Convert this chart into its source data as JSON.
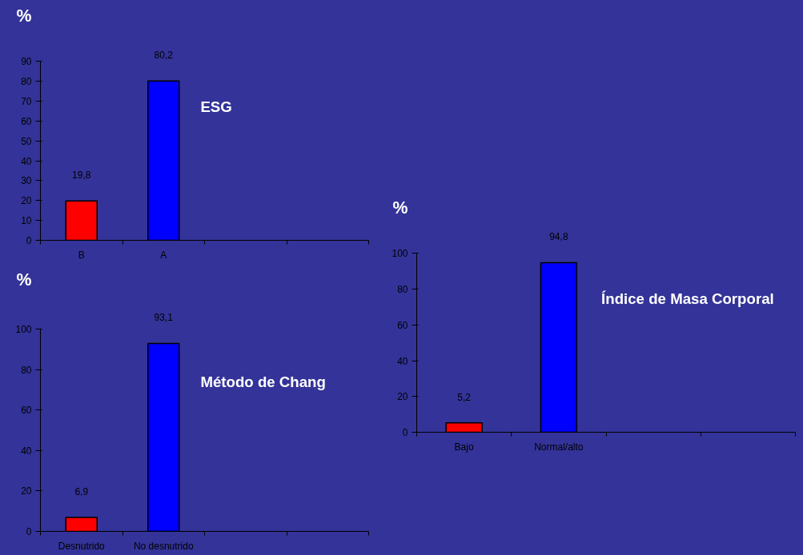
{
  "chart_data": [
    {
      "type": "bar",
      "title": "ESG",
      "ylabel": "%",
      "categories": [
        "B",
        "A",
        null,
        null
      ],
      "values": [
        19.8,
        80.2,
        null,
        null
      ],
      "colors": [
        "#ff0000",
        "#0000ff",
        null,
        null
      ],
      "value_labels": [
        "19,8",
        "80,2",
        null,
        null
      ],
      "ylim": [
        0,
        90
      ],
      "yticks": [
        0,
        10,
        20,
        30,
        40,
        50,
        60,
        70,
        80,
        90
      ],
      "grid": false
    },
    {
      "type": "bar",
      "title": "Índice de Masa Corporal",
      "ylabel": "%",
      "categories": [
        "Bajo",
        "Normal/alto",
        null,
        null
      ],
      "values": [
        5.2,
        94.8,
        null,
        null
      ],
      "colors": [
        "#ff0000",
        "#0000ff",
        null,
        null
      ],
      "value_labels": [
        "5,2",
        "94,8",
        null,
        null
      ],
      "ylim": [
        0,
        100
      ],
      "yticks": [
        0,
        20,
        40,
        60,
        80,
        100
      ],
      "grid": false
    },
    {
      "type": "bar",
      "title": "Método de Chang",
      "ylabel": "%",
      "categories": [
        "Desnutrido",
        "No desnutrido",
        null,
        null
      ],
      "values": [
        6.9,
        93.1,
        null,
        null
      ],
      "colors": [
        "#ff0000",
        "#0000ff",
        null,
        null
      ],
      "value_labels": [
        "6,9",
        "93,1",
        null,
        null
      ],
      "ylim": [
        0,
        100
      ],
      "yticks": [
        0,
        20,
        40,
        60,
        80,
        100
      ],
      "grid": false
    }
  ]
}
